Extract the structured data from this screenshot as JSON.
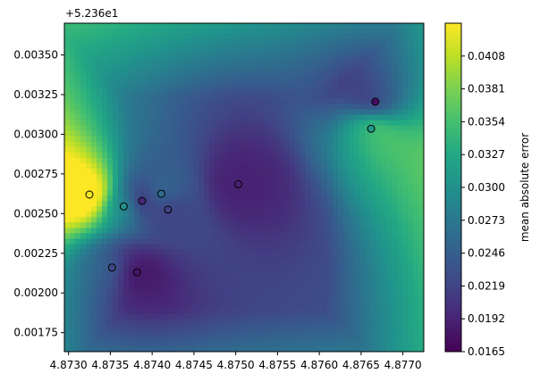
{
  "chart_data": {
    "type": "heatmap",
    "title": "",
    "xlabel": "",
    "ylabel": "",
    "y_offset_label": "+5.236e1",
    "xlim": [
      4.87295,
      4.87725
    ],
    "ylim": [
      0.00163,
      0.0037
    ],
    "x_ticks": [
      {
        "value": 4.873,
        "label": "4.8730"
      },
      {
        "value": 4.8735,
        "label": "4.8735"
      },
      {
        "value": 4.874,
        "label": "4.8740"
      },
      {
        "value": 4.8745,
        "label": "4.8745"
      },
      {
        "value": 4.875,
        "label": "4.8750"
      },
      {
        "value": 4.8755,
        "label": "4.8755"
      },
      {
        "value": 4.876,
        "label": "4.8760"
      },
      {
        "value": 4.8765,
        "label": "4.8765"
      },
      {
        "value": 4.877,
        "label": "4.8770"
      }
    ],
    "y_ticks": [
      {
        "value": 0.00175,
        "label": "0.00175"
      },
      {
        "value": 0.002,
        "label": "0.00200"
      },
      {
        "value": 0.00225,
        "label": "0.00225"
      },
      {
        "value": 0.0025,
        "label": "0.00250"
      },
      {
        "value": 0.00275,
        "label": "0.00275"
      },
      {
        "value": 0.003,
        "label": "0.00300"
      },
      {
        "value": 0.00325,
        "label": "0.00325"
      },
      {
        "value": 0.0035,
        "label": "0.00350"
      }
    ],
    "colorbar": {
      "label": "mean absolute error",
      "colormap": "viridis",
      "range": [
        0.0165,
        0.0435
      ],
      "ticks": [
        "0.0165",
        "0.0192",
        "0.0219",
        "0.0246",
        "0.0273",
        "0.0300",
        "0.0327",
        "0.0354",
        "0.0381",
        "0.0408"
      ]
    },
    "points": [
      {
        "x": 4.87325,
        "y": 0.00262,
        "value": 0.043
      },
      {
        "x": 4.87366,
        "y": 0.002545,
        "value": 0.03
      },
      {
        "x": 4.87388,
        "y": 0.00258,
        "value": 0.0195
      },
      {
        "x": 4.87411,
        "y": 0.002625,
        "value": 0.026
      },
      {
        "x": 4.87419,
        "y": 0.002525,
        "value": 0.0215
      },
      {
        "x": 4.87352,
        "y": 0.00216,
        "value": 0.0225
      },
      {
        "x": 4.87382,
        "y": 0.00213,
        "value": 0.018
      },
      {
        "x": 4.87503,
        "y": 0.002685,
        "value": 0.019
      },
      {
        "x": 4.87662,
        "y": 0.003035,
        "value": 0.031
      },
      {
        "x": 4.87667,
        "y": 0.003205,
        "value": 0.0175
      }
    ]
  }
}
